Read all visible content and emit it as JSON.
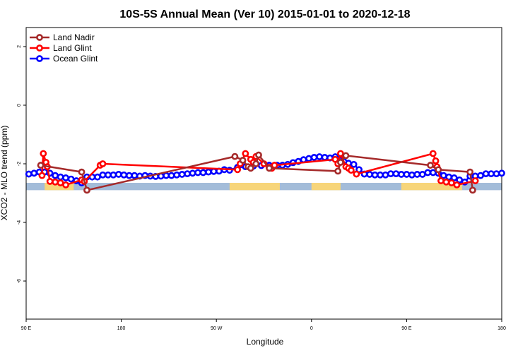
{
  "chart_data": {
    "type": "line",
    "title": "10S-5S Annual Mean (Ver 10)   2015-01-01 to 2020-12-18",
    "xlabel": "Longitude",
    "ylabel": "XCO2 - MLO trend (ppm)",
    "xlim": [
      90,
      450
    ],
    "ylim": [
      -7.3,
      2.65
    ],
    "x_ticks": [
      {
        "value": 90,
        "label": "90 E"
      },
      {
        "value": 162,
        "label": "180"
      },
      {
        "value": 234,
        "label": "90 W"
      },
      {
        "value": 306,
        "label": "0"
      },
      {
        "value": 378,
        "label": "90 E"
      },
      {
        "value": 450,
        "label": "180"
      }
    ],
    "y_ticks": [
      {
        "value": 2,
        "label": "2"
      },
      {
        "value": 0,
        "label": "0"
      },
      {
        "value": -2,
        "label": "-2"
      },
      {
        "value": -4,
        "label": "-4"
      },
      {
        "value": -6,
        "label": "-6"
      }
    ],
    "legend": {
      "placement": "top-left",
      "entries": [
        {
          "name": "Land Nadir",
          "color": "#a52a2a"
        },
        {
          "name": "Land Glint",
          "color": "#ff0000"
        },
        {
          "name": "Ocean Glint",
          "color": "#0000ff"
        }
      ]
    },
    "map_band": {
      "y_top": -2.65,
      "y_bottom": -2.9,
      "ocean_color": "#a3bcd9",
      "land_color": "#f7d57a",
      "land_segments": [
        [
          104,
          126
        ],
        [
          244,
          282
        ],
        [
          306,
          328
        ],
        [
          374,
          420
        ]
      ]
    },
    "series": [
      {
        "name": "Ocean Glint",
        "color": "#0000ff",
        "points": [
          [
            92,
            -2.35
          ],
          [
            96,
            -2.32
          ],
          [
            100,
            -2.28
          ],
          [
            104,
            -2.28
          ],
          [
            108,
            -2.32
          ],
          [
            112,
            -2.4
          ],
          [
            116,
            -2.45
          ],
          [
            120,
            -2.48
          ],
          [
            124,
            -2.52
          ],
          [
            128,
            -2.58
          ],
          [
            132,
            -2.65
          ],
          [
            136,
            -2.45
          ],
          [
            140,
            -2.45
          ],
          [
            144,
            -2.45
          ],
          [
            148,
            -2.38
          ],
          [
            152,
            -2.38
          ],
          [
            156,
            -2.38
          ],
          [
            160,
            -2.36
          ],
          [
            164,
            -2.38
          ],
          [
            168,
            -2.4
          ],
          [
            172,
            -2.4
          ],
          [
            176,
            -2.42
          ],
          [
            180,
            -2.4
          ],
          [
            184,
            -2.42
          ],
          [
            188,
            -2.43
          ],
          [
            192,
            -2.42
          ],
          [
            196,
            -2.4
          ],
          [
            200,
            -2.4
          ],
          [
            204,
            -2.38
          ],
          [
            208,
            -2.36
          ],
          [
            212,
            -2.34
          ],
          [
            216,
            -2.32
          ],
          [
            220,
            -2.3
          ],
          [
            224,
            -2.3
          ],
          [
            228,
            -2.28
          ],
          [
            232,
            -2.26
          ],
          [
            236,
            -2.25
          ],
          [
            240,
            -2.2
          ],
          [
            244,
            -2.22
          ],
          [
            250,
            -2.12
          ],
          [
            256,
            -2.1
          ],
          [
            262,
            -2.08
          ],
          [
            268,
            -2.06
          ],
          [
            274,
            -2.05
          ],
          [
            280,
            -2.05
          ],
          [
            284,
            -2.05
          ],
          [
            288,
            -2.02
          ],
          [
            292,
            -1.96
          ],
          [
            296,
            -1.92
          ],
          [
            300,
            -1.86
          ],
          [
            304,
            -1.82
          ],
          [
            308,
            -1.78
          ],
          [
            312,
            -1.76
          ],
          [
            316,
            -1.78
          ],
          [
            320,
            -1.8
          ],
          [
            324,
            -1.76
          ],
          [
            330,
            -1.76
          ],
          [
            334,
            -1.98
          ],
          [
            338,
            -2.02
          ],
          [
            342,
            -2.2
          ],
          [
            346,
            -2.35
          ],
          [
            350,
            -2.36
          ],
          [
            354,
            -2.38
          ],
          [
            358,
            -2.38
          ],
          [
            362,
            -2.38
          ],
          [
            366,
            -2.34
          ],
          [
            370,
            -2.34
          ],
          [
            374,
            -2.36
          ],
          [
            378,
            -2.36
          ],
          [
            382,
            -2.38
          ],
          [
            386,
            -2.36
          ],
          [
            390,
            -2.36
          ],
          [
            394,
            -2.3
          ],
          [
            398,
            -2.3
          ],
          [
            402,
            -2.32
          ],
          [
            406,
            -2.4
          ],
          [
            410,
            -2.45
          ],
          [
            414,
            -2.48
          ],
          [
            418,
            -2.55
          ],
          [
            422,
            -2.62
          ],
          [
            426,
            -2.42
          ],
          [
            430,
            -2.42
          ],
          [
            434,
            -2.4
          ],
          [
            438,
            -2.34
          ],
          [
            442,
            -2.34
          ],
          [
            446,
            -2.34
          ],
          [
            450,
            -2.32
          ]
        ]
      },
      {
        "name": "Land Glint",
        "color": "#ff0000",
        "points": [
          [
            102,
            -2.4
          ],
          [
            103,
            -1.65
          ],
          [
            105,
            -1.95
          ],
          [
            106,
            -2.1
          ],
          [
            108,
            -2.6
          ],
          [
            112,
            -2.62
          ],
          [
            116,
            -2.65
          ],
          [
            120,
            -2.72
          ],
          [
            132,
            -2.55
          ],
          [
            134,
            -2.6
          ],
          [
            146,
            -2.05
          ],
          [
            148,
            -2.0
          ],
          [
            250,
            -2.2
          ],
          [
            252,
            -2.0
          ],
          [
            256,
            -1.65
          ],
          [
            260,
            -1.85
          ],
          [
            262,
            -1.95
          ],
          [
            264,
            -1.75
          ],
          [
            270,
            -2.0
          ],
          [
            274,
            -2.12
          ],
          [
            276,
            -2.15
          ],
          [
            278,
            -2.05
          ],
          [
            324,
            -1.85
          ],
          [
            326,
            -2.0
          ],
          [
            328,
            -1.65
          ],
          [
            332,
            -2.1
          ],
          [
            334,
            -2.15
          ],
          [
            336,
            -2.22
          ],
          [
            340,
            -2.35
          ],
          [
            398,
            -1.65
          ],
          [
            400,
            -1.9
          ],
          [
            401,
            -2.1
          ],
          [
            404,
            -2.58
          ],
          [
            408,
            -2.62
          ],
          [
            412,
            -2.65
          ],
          [
            416,
            -2.72
          ],
          [
            430,
            -2.58
          ]
        ]
      },
      {
        "name": "Land Nadir",
        "color": "#a52a2a",
        "points": [
          [
            101,
            -2.05
          ],
          [
            132,
            -2.28
          ],
          [
            136,
            -2.9
          ],
          [
            248,
            -1.75
          ],
          [
            254,
            -1.88
          ],
          [
            258,
            -2.1
          ],
          [
            260,
            -2.15
          ],
          [
            264,
            -2.0
          ],
          [
            266,
            -1.7
          ],
          [
            274,
            -2.15
          ],
          [
            326,
            -2.25
          ],
          [
            328,
            -1.95
          ],
          [
            332,
            -1.72
          ],
          [
            396,
            -2.05
          ],
          [
            402,
            -2.2
          ],
          [
            426,
            -2.28
          ],
          [
            428,
            -2.9
          ]
        ]
      }
    ]
  }
}
